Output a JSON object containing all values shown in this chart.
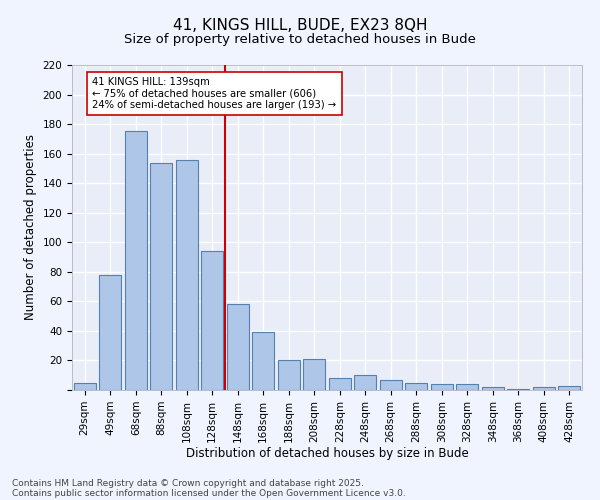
{
  "title_line1": "41, KINGS HILL, BUDE, EX23 8QH",
  "title_line2": "Size of property relative to detached houses in Bude",
  "xlabel": "Distribution of detached houses by size in Bude",
  "ylabel": "Number of detached properties",
  "bar_values": [
    5,
    78,
    175,
    154,
    156,
    94,
    58,
    39,
    20,
    21,
    8,
    10,
    7,
    5,
    4,
    4,
    2,
    1,
    2,
    3
  ],
  "bar_labels": [
    "29sqm",
    "49sqm",
    "68sqm",
    "88sqm",
    "108sqm",
    "128sqm",
    "148sqm",
    "168sqm",
    "188sqm",
    "208sqm",
    "228sqm",
    "248sqm",
    "268sqm",
    "288sqm",
    "308sqm",
    "328sqm",
    "348sqm",
    "368sqm",
    "408sqm",
    "428sqm"
  ],
  "bar_color": "#aec6e8",
  "bar_edge_color": "#5580b0",
  "background_color": "#e8edf8",
  "grid_color": "#ffffff",
  "vline_x": 6.0,
  "vline_color": "#cc0000",
  "annotation_text": "41 KINGS HILL: 139sqm\n← 75% of detached houses are smaller (606)\n24% of semi-detached houses are larger (193) →",
  "annotation_box_color": "#ffffff",
  "annotation_box_edge": "#cc0000",
  "ylim": [
    0,
    220
  ],
  "yticks": [
    0,
    20,
    40,
    60,
    80,
    100,
    120,
    140,
    160,
    180,
    200,
    220
  ],
  "footer_line1": "Contains HM Land Registry data © Crown copyright and database right 2025.",
  "footer_line2": "Contains public sector information licensed under the Open Government Licence v3.0.",
  "title_fontsize": 11,
  "subtitle_fontsize": 9.5,
  "label_fontsize": 8.5,
  "tick_fontsize": 7.5,
  "footer_fontsize": 6.5
}
